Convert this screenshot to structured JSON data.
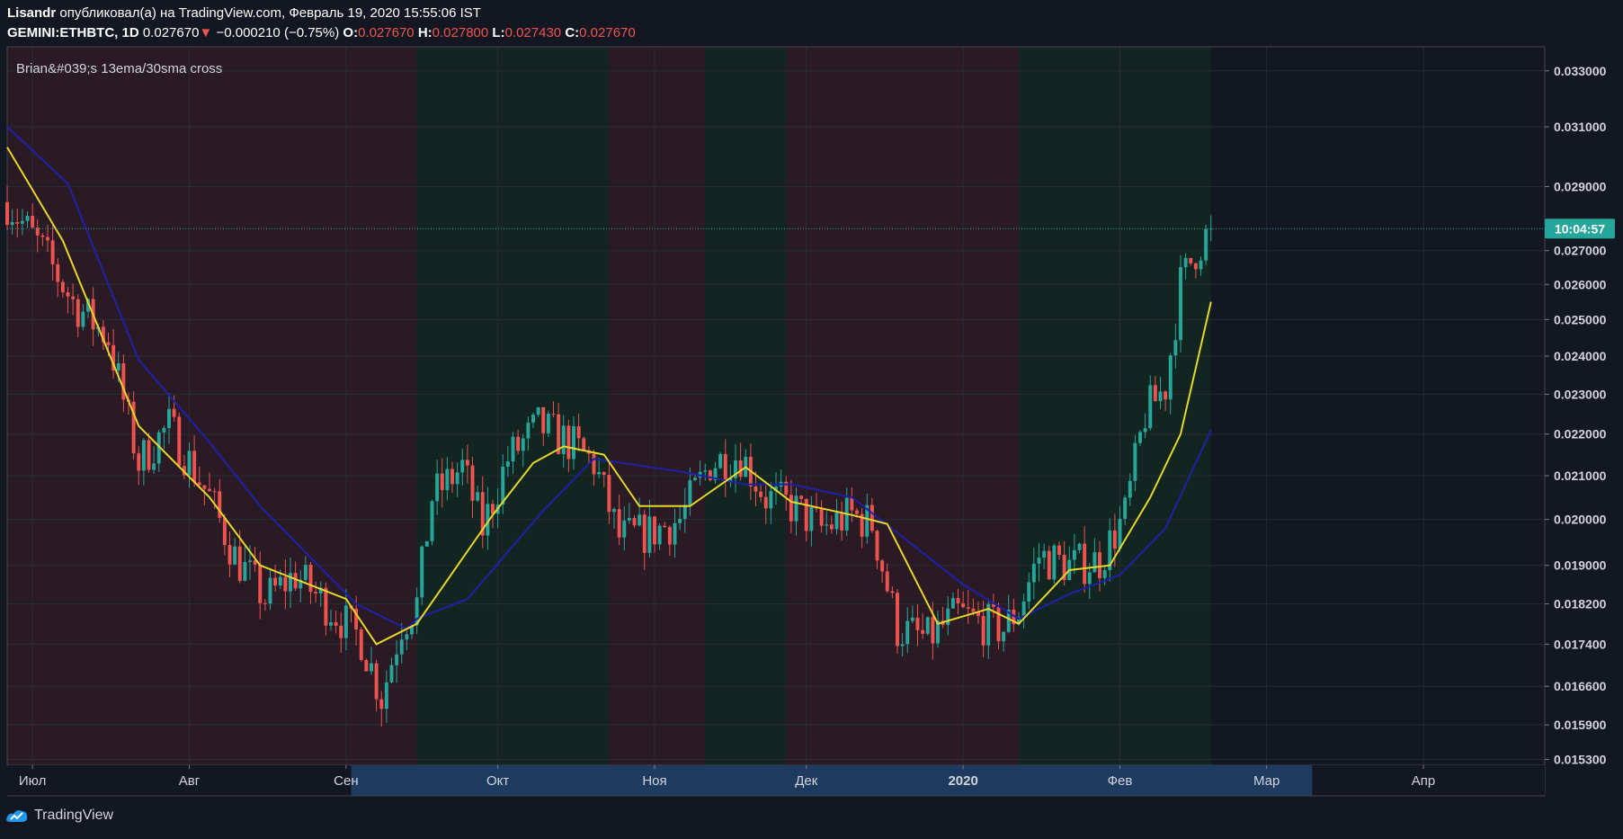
{
  "header": {
    "author": "Lisandr",
    "published_text": "опубликовал(а) на TradingView.com, Февраль 19, 2020 15:55:06 IST",
    "symbol": "GEMINI:ETHBTC, 1D",
    "last": "0.027670",
    "change_arrow": "▼",
    "change": "−0.000210 (−0.75%)",
    "o_label": "O:",
    "o_value": "0.027670",
    "h_label": "H:",
    "h_value": "0.027800",
    "l_label": "L:",
    "l_value": "0.027430",
    "c_label": "C:",
    "c_value": "0.027670"
  },
  "indicator_label": "Brian&#039;s 13ema/30sma cross",
  "price_tag": "10:04:57",
  "footer": {
    "brand": "TradingView"
  },
  "colors": {
    "background": "#131722",
    "bear_zone": "#2a1a24",
    "bull_zone": "#132520",
    "up_candle": "#26a69a",
    "down_candle": "#ef5350",
    "ema": "#e6d82a",
    "sma": "#1f1fa8",
    "price_line": "#26a69a",
    "time_axis_highlight": "#1e3a5f"
  },
  "chart_data": {
    "type": "candlestick",
    "log_scale": true,
    "y_ticks": [
      0.0153,
      0.0159,
      0.0166,
      0.0174,
      0.0182,
      0.019,
      0.02,
      0.021,
      0.022,
      0.023,
      0.024,
      0.025,
      0.026,
      0.027,
      0.029,
      0.031,
      0.033
    ],
    "y_tick_labels": [
      "0.015300",
      "0.015900",
      "0.016600",
      "0.017400",
      "0.018200",
      "0.019000",
      "0.020000",
      "0.021000",
      "0.022000",
      "0.023000",
      "0.024000",
      "0.025000",
      "0.026000",
      "0.027000",
      "0.029000",
      "0.031000",
      "0.033000"
    ],
    "x_start": "2019-06-26",
    "x_end": "2020-04-25",
    "x_ticks": [
      {
        "date": "2019-07-01",
        "label": "Июл"
      },
      {
        "date": "2019-08-01",
        "label": "Авг"
      },
      {
        "date": "2019-09-01",
        "label": "Сен"
      },
      {
        "date": "2019-10-01",
        "label": "Окт"
      },
      {
        "date": "2019-11-01",
        "label": "Ноя"
      },
      {
        "date": "2019-12-01",
        "label": "Дек"
      },
      {
        "date": "2020-01-01",
        "label": "2020"
      },
      {
        "date": "2020-02-01",
        "label": "Фев"
      },
      {
        "date": "2020-03-01",
        "label": "Мар"
      },
      {
        "date": "2020-04-01",
        "label": "Апр"
      }
    ],
    "time_axis_highlight": {
      "start": "2019-09-02",
      "end": "2020-03-10"
    },
    "last_price": 0.02767,
    "zones": [
      {
        "start": "2019-06-26",
        "end": "2019-09-15",
        "trend": "bear"
      },
      {
        "start": "2019-09-15",
        "end": "2019-10-23",
        "trend": "bull"
      },
      {
        "start": "2019-10-23",
        "end": "2019-11-11",
        "trend": "bear"
      },
      {
        "start": "2019-11-11",
        "end": "2019-11-27",
        "trend": "bull"
      },
      {
        "start": "2019-11-27",
        "end": "2020-01-12",
        "trend": "bear"
      },
      {
        "start": "2020-01-12",
        "end": "2020-02-19",
        "trend": "bull"
      }
    ],
    "close_anchors": [
      {
        "date": "2019-06-26",
        "value": 0.0285
      },
      {
        "date": "2019-07-03",
        "value": 0.027
      },
      {
        "date": "2019-07-09",
        "value": 0.0255
      },
      {
        "date": "2019-07-16",
        "value": 0.0245
      },
      {
        "date": "2019-07-22",
        "value": 0.0213
      },
      {
        "date": "2019-07-28",
        "value": 0.0222
      },
      {
        "date": "2019-08-05",
        "value": 0.0205
      },
      {
        "date": "2019-08-10",
        "value": 0.0192
      },
      {
        "date": "2019-08-16",
        "value": 0.0183
      },
      {
        "date": "2019-08-22",
        "value": 0.0188
      },
      {
        "date": "2019-08-30",
        "value": 0.018
      },
      {
        "date": "2019-09-04",
        "value": 0.0175
      },
      {
        "date": "2019-09-08",
        "value": 0.0164
      },
      {
        "date": "2019-09-12",
        "value": 0.0178
      },
      {
        "date": "2019-09-15",
        "value": 0.0182
      },
      {
        "date": "2019-09-18",
        "value": 0.0205
      },
      {
        "date": "2019-09-24",
        "value": 0.0212
      },
      {
        "date": "2019-09-28",
        "value": 0.0198
      },
      {
        "date": "2019-10-03",
        "value": 0.0214
      },
      {
        "date": "2019-10-09",
        "value": 0.0222
      },
      {
        "date": "2019-10-15",
        "value": 0.0218
      },
      {
        "date": "2019-10-20",
        "value": 0.0213
      },
      {
        "date": "2019-10-25",
        "value": 0.0196
      },
      {
        "date": "2019-10-31",
        "value": 0.0197
      },
      {
        "date": "2019-11-06",
        "value": 0.02
      },
      {
        "date": "2019-11-12",
        "value": 0.0213
      },
      {
        "date": "2019-11-18",
        "value": 0.0215
      },
      {
        "date": "2019-11-23",
        "value": 0.0205
      },
      {
        "date": "2019-11-28",
        "value": 0.0203
      },
      {
        "date": "2019-12-04",
        "value": 0.0198
      },
      {
        "date": "2019-12-10",
        "value": 0.0201
      },
      {
        "date": "2019-12-14",
        "value": 0.0199
      },
      {
        "date": "2019-12-19",
        "value": 0.0177
      },
      {
        "date": "2019-12-25",
        "value": 0.0175
      },
      {
        "date": "2019-12-31",
        "value": 0.018
      },
      {
        "date": "2020-01-05",
        "value": 0.0178
      },
      {
        "date": "2020-01-09",
        "value": 0.0177
      },
      {
        "date": "2020-01-12",
        "value": 0.0181
      },
      {
        "date": "2020-01-16",
        "value": 0.0192
      },
      {
        "date": "2020-01-22",
        "value": 0.019
      },
      {
        "date": "2020-01-28",
        "value": 0.0191
      },
      {
        "date": "2020-02-02",
        "value": 0.0201
      },
      {
        "date": "2020-02-06",
        "value": 0.0225
      },
      {
        "date": "2020-02-10",
        "value": 0.0232
      },
      {
        "date": "2020-02-13",
        "value": 0.026
      },
      {
        "date": "2020-02-16",
        "value": 0.027
      },
      {
        "date": "2020-02-19",
        "value": 0.02767
      }
    ],
    "ema13": [
      {
        "date": "2019-06-26",
        "value": 0.0303
      },
      {
        "date": "2019-07-07",
        "value": 0.0273
      },
      {
        "date": "2019-07-22",
        "value": 0.0222
      },
      {
        "date": "2019-08-05",
        "value": 0.0205
      },
      {
        "date": "2019-08-15",
        "value": 0.019
      },
      {
        "date": "2019-09-01",
        "value": 0.0183
      },
      {
        "date": "2019-09-07",
        "value": 0.0174
      },
      {
        "date": "2019-09-15",
        "value": 0.0178
      },
      {
        "date": "2019-09-30",
        "value": 0.0201
      },
      {
        "date": "2019-10-08",
        "value": 0.0213
      },
      {
        "date": "2019-10-14",
        "value": 0.0217
      },
      {
        "date": "2019-10-22",
        "value": 0.0215
      },
      {
        "date": "2019-10-29",
        "value": 0.0203
      },
      {
        "date": "2019-11-08",
        "value": 0.0203
      },
      {
        "date": "2019-11-19",
        "value": 0.0212
      },
      {
        "date": "2019-11-28",
        "value": 0.0204
      },
      {
        "date": "2019-12-10",
        "value": 0.0201
      },
      {
        "date": "2019-12-17",
        "value": 0.0199
      },
      {
        "date": "2019-12-27",
        "value": 0.0178
      },
      {
        "date": "2020-01-06",
        "value": 0.0181
      },
      {
        "date": "2020-01-12",
        "value": 0.0178
      },
      {
        "date": "2020-01-22",
        "value": 0.0189
      },
      {
        "date": "2020-01-30",
        "value": 0.019
      },
      {
        "date": "2020-02-07",
        "value": 0.0205
      },
      {
        "date": "2020-02-13",
        "value": 0.022
      },
      {
        "date": "2020-02-19",
        "value": 0.0255
      }
    ],
    "sma30": [
      {
        "date": "2019-06-26",
        "value": 0.031
      },
      {
        "date": "2019-07-08",
        "value": 0.0291
      },
      {
        "date": "2019-07-22",
        "value": 0.0239
      },
      {
        "date": "2019-08-05",
        "value": 0.0218
      },
      {
        "date": "2019-08-15",
        "value": 0.0203
      },
      {
        "date": "2019-09-03",
        "value": 0.0182
      },
      {
        "date": "2019-09-13",
        "value": 0.0177
      },
      {
        "date": "2019-09-15",
        "value": 0.0179
      },
      {
        "date": "2019-09-25",
        "value": 0.0183
      },
      {
        "date": "2019-10-10",
        "value": 0.0202
      },
      {
        "date": "2019-10-20",
        "value": 0.0214
      },
      {
        "date": "2019-11-06",
        "value": 0.0211
      },
      {
        "date": "2019-11-19",
        "value": 0.0208
      },
      {
        "date": "2019-11-28",
        "value": 0.0208
      },
      {
        "date": "2019-12-10",
        "value": 0.0205
      },
      {
        "date": "2020-01-01",
        "value": 0.0186
      },
      {
        "date": "2020-01-12",
        "value": 0.0179
      },
      {
        "date": "2020-01-22",
        "value": 0.0184
      },
      {
        "date": "2020-02-01",
        "value": 0.0188
      },
      {
        "date": "2020-02-10",
        "value": 0.0198
      },
      {
        "date": "2020-02-19",
        "value": 0.0221
      }
    ]
  }
}
